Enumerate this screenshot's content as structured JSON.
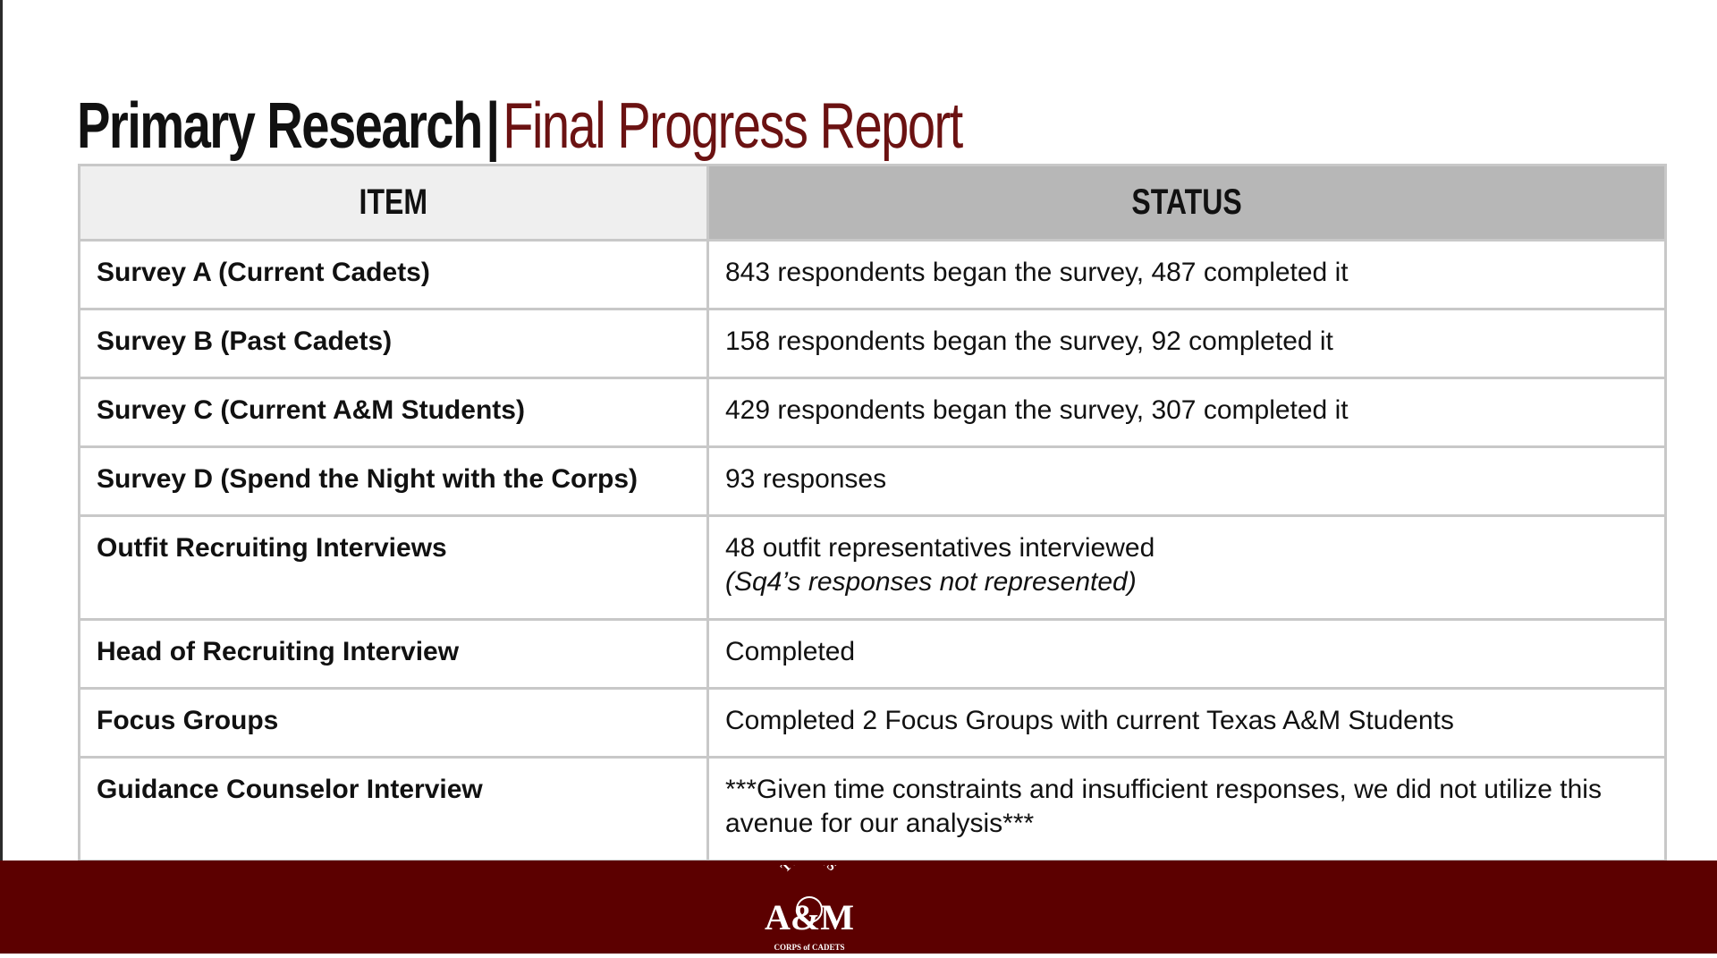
{
  "title": {
    "primary": "Primary Research",
    "separator": "|",
    "secondary": "Final Progress Report"
  },
  "table": {
    "headers": [
      "ITEM",
      "STATUS"
    ],
    "rows": [
      {
        "item": "Survey A (Current Cadets)",
        "status": "843 respondents began the survey, 487 completed it"
      },
      {
        "item": "Survey B (Past Cadets)",
        "status": "158 respondents began the survey, 92 completed it"
      },
      {
        "item": "Survey C (Current A&M Students)",
        "status": "429 respondents began the survey, 307 completed it"
      },
      {
        "item": "Survey D (Spend the Night with the Corps)",
        "status": "93 responses"
      },
      {
        "item": "Outfit Recruiting Interviews",
        "status": "48 outfit representatives interviewed",
        "note": "(Sq4’s responses not represented)"
      },
      {
        "item": "Head of Recruiting Interview",
        "status": "Completed"
      },
      {
        "item": "Focus Groups",
        "status": "Completed 2 Focus Groups with current Texas A&M Students"
      },
      {
        "item": "Guidance Counselor Interview",
        "status": "***Given time constraints and insufficient responses, we did not utilize this avenue for our analysis***"
      }
    ]
  },
  "footer": {
    "logo": {
      "icon": "texas-am-corps-of-cadets-logo",
      "arc_text": "TEXAS",
      "monogram": "A&M",
      "bottom_text": "CORPS of CADETS"
    }
  },
  "colors": {
    "maroon": "#5c0000",
    "title_accent": "#6b1212",
    "header_item_bg": "#efefef",
    "header_status_bg": "#b7b7b7",
    "border": "#c8c8c8"
  }
}
